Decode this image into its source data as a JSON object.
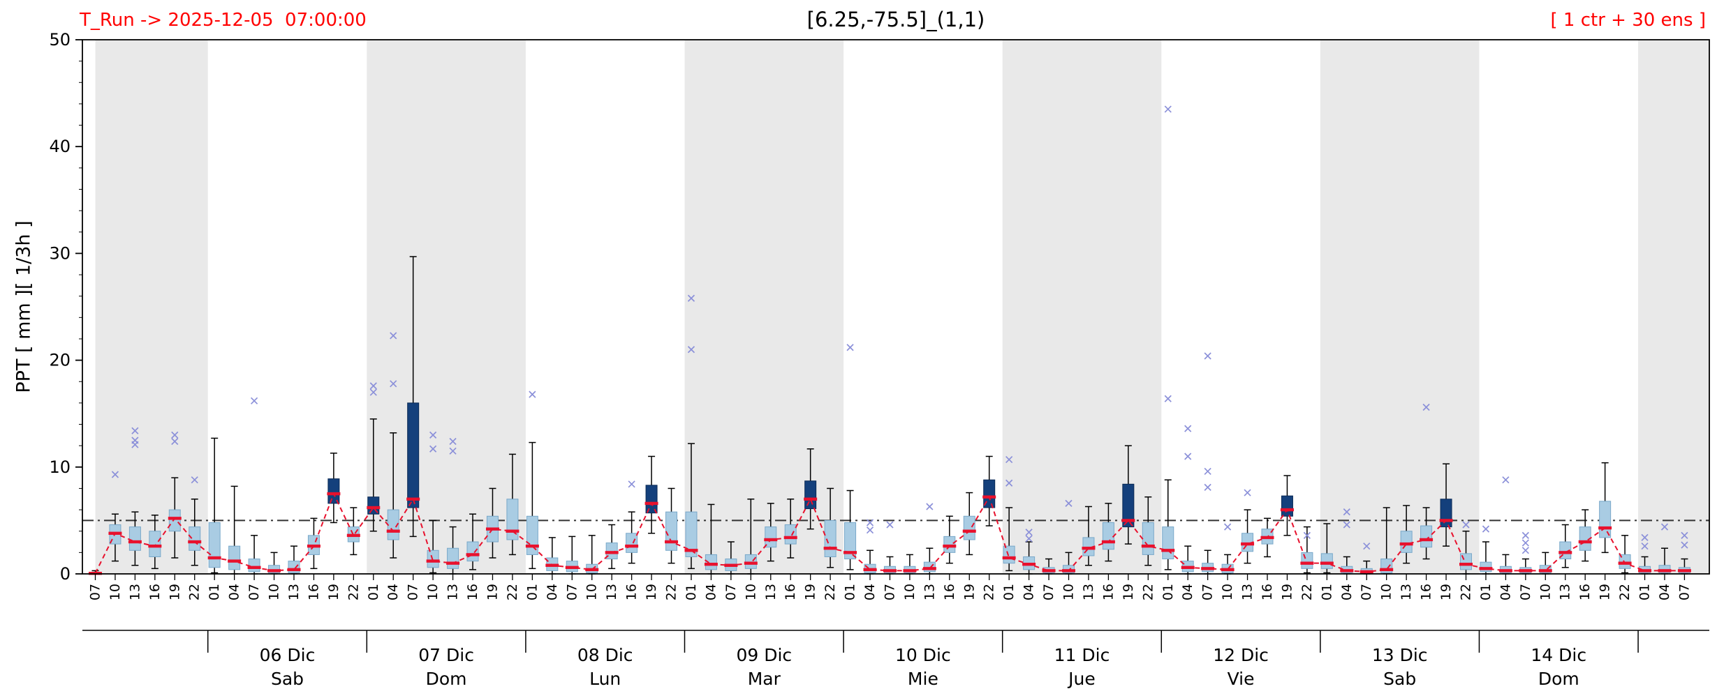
{
  "header": {
    "t_run": "T_Run -> 2025-12-05  07:00:00",
    "title": "[6.25,-75.5]_(1,1)",
    "ensemble": "[ 1 ctr + 30 ens ]"
  },
  "chart_data": {
    "type": "boxplot-timeseries",
    "title": "[6.25,-75.5]_(1,1)",
    "left_annotation": "T_Run -> 2025-12-05  07:00:00",
    "right_annotation": "[ 1 ctr + 30 ens ]",
    "ylabel": "PPT  [ mm ][ 1/3h ]",
    "ylim": [
      0,
      50
    ],
    "yticks": [
      0,
      10,
      20,
      30,
      40,
      50
    ],
    "threshold": 5,
    "start": "2025-12-05 07:00",
    "step_hours": 3,
    "colors": {
      "red": "#e8112d",
      "title_red": "#ff0000",
      "light_box": "#a9cce3",
      "dark_box": "#14407c",
      "flier": "#8b90d9",
      "band": "#e9e9e9"
    },
    "days": [
      {
        "label": "",
        "sub": "",
        "start": 0,
        "end": 5.667,
        "shaded": true
      },
      {
        "label": "06 Dic",
        "sub": "Sab",
        "start": 5.667,
        "end": 13.667,
        "shaded": false
      },
      {
        "label": "07 Dic",
        "sub": "Dom",
        "start": 13.667,
        "end": 21.667,
        "shaded": true
      },
      {
        "label": "08 Dic",
        "sub": "Lun",
        "start": 21.667,
        "end": 29.667,
        "shaded": false
      },
      {
        "label": "09 Dic",
        "sub": "Mar",
        "start": 29.667,
        "end": 37.667,
        "shaded": true
      },
      {
        "label": "10 Dic",
        "sub": "Mie",
        "start": 37.667,
        "end": 45.667,
        "shaded": false
      },
      {
        "label": "11 Dic",
        "sub": "Jue",
        "start": 45.667,
        "end": 53.667,
        "shaded": true
      },
      {
        "label": "12 Dic",
        "sub": "Vie",
        "start": 53.667,
        "end": 61.667,
        "shaded": false
      },
      {
        "label": "13 Dic",
        "sub": "Sab",
        "start": 61.667,
        "end": 69.667,
        "shaded": true
      },
      {
        "label": "14 Dic",
        "sub": "Dom",
        "start": 69.667,
        "end": 77.667,
        "shaded": false
      },
      {
        "label": "",
        "sub": "",
        "start": 77.667,
        "end": 81.25,
        "shaded": true
      }
    ],
    "slot_fields": [
      "hour",
      "median",
      "q1",
      "q3",
      "whisker_lo",
      "whisker_hi",
      "dark_box",
      "outliers"
    ],
    "slots": [
      [
        "07",
        0.05,
        0,
        0.15,
        0,
        0.3,
        0,
        []
      ],
      [
        "10",
        3.8,
        2.8,
        4.6,
        1.2,
        5.6,
        0,
        [
          9.3
        ]
      ],
      [
        "13",
        3.0,
        2.2,
        4.4,
        0.8,
        5.8,
        0,
        [
          13.4,
          12.5,
          12.1
        ]
      ],
      [
        "16",
        2.6,
        1.6,
        4.0,
        0.5,
        5.5,
        0,
        []
      ],
      [
        "19",
        5.2,
        4.0,
        6.0,
        1.5,
        9.0,
        0,
        [
          13.0,
          12.4
        ]
      ],
      [
        "22",
        3.0,
        2.2,
        4.4,
        0.8,
        7.0,
        0,
        [
          8.8
        ]
      ],
      [
        "01",
        1.5,
        0.6,
        4.8,
        0.1,
        12.7,
        0,
        []
      ],
      [
        "04",
        1.2,
        0.4,
        2.6,
        0,
        8.2,
        0,
        []
      ],
      [
        "07",
        0.6,
        0.2,
        1.4,
        0,
        3.6,
        0,
        [
          16.2
        ]
      ],
      [
        "10",
        0.3,
        0.1,
        0.8,
        0,
        2.0,
        0,
        []
      ],
      [
        "13",
        0.4,
        0.1,
        1.2,
        0,
        2.6,
        0,
        []
      ],
      [
        "16",
        2.6,
        1.8,
        3.6,
        0.5,
        5.2,
        0,
        []
      ],
      [
        "19",
        7.5,
        6.6,
        8.9,
        4.8,
        11.3,
        1,
        []
      ],
      [
        "22",
        3.6,
        3.0,
        4.4,
        1.8,
        6.2,
        0,
        []
      ],
      [
        "01",
        6.2,
        5.6,
        7.2,
        4.0,
        14.5,
        1,
        [
          17.6,
          17.0
        ]
      ],
      [
        "04",
        4.0,
        3.2,
        6.0,
        1.5,
        13.2,
        0,
        [
          22.3,
          17.8
        ]
      ],
      [
        "07",
        7.0,
        6.2,
        16.0,
        3.5,
        29.7,
        1,
        []
      ],
      [
        "10",
        1.2,
        0.6,
        2.2,
        0.1,
        5.0,
        0,
        [
          13.0,
          11.7
        ]
      ],
      [
        "13",
        1.0,
        0.5,
        2.4,
        0,
        4.4,
        0,
        [
          12.4,
          11.5
        ]
      ],
      [
        "16",
        1.8,
        1.2,
        3.0,
        0.4,
        5.6,
        0,
        []
      ],
      [
        "19",
        4.2,
        3.0,
        5.4,
        1.5,
        8.0,
        0,
        []
      ],
      [
        "22",
        4.0,
        3.2,
        7.0,
        1.8,
        11.2,
        0,
        []
      ],
      [
        "01",
        2.6,
        1.8,
        5.4,
        0.5,
        12.3,
        0,
        [
          16.8
        ]
      ],
      [
        "04",
        0.8,
        0.3,
        1.5,
        0,
        3.4,
        0,
        []
      ],
      [
        "07",
        0.6,
        0.2,
        1.2,
        0,
        3.5,
        0,
        []
      ],
      [
        "10",
        0.4,
        0.1,
        0.9,
        0,
        3.6,
        0,
        []
      ],
      [
        "13",
        2.0,
        1.4,
        2.9,
        0.5,
        4.6,
        0,
        []
      ],
      [
        "16",
        2.6,
        2.0,
        3.8,
        1.0,
        5.8,
        0,
        [
          8.4
        ]
      ],
      [
        "19",
        6.6,
        5.7,
        8.3,
        3.8,
        11.0,
        1,
        []
      ],
      [
        "22",
        3.0,
        2.2,
        5.8,
        1.0,
        8.0,
        0,
        []
      ],
      [
        "01",
        2.2,
        1.6,
        5.8,
        0.5,
        12.2,
        0,
        [
          25.8,
          21.0
        ]
      ],
      [
        "04",
        0.9,
        0.4,
        1.8,
        0,
        6.5,
        0,
        []
      ],
      [
        "07",
        0.8,
        0.3,
        1.4,
        0,
        3.0,
        0,
        []
      ],
      [
        "10",
        1.0,
        0.5,
        1.8,
        0,
        7.0,
        0,
        []
      ],
      [
        "13",
        3.2,
        2.5,
        4.4,
        1.2,
        6.6,
        0,
        []
      ],
      [
        "16",
        3.4,
        2.8,
        4.6,
        1.5,
        7.0,
        0,
        []
      ],
      [
        "19",
        7.0,
        6.1,
        8.7,
        4.2,
        11.7,
        1,
        []
      ],
      [
        "22",
        2.4,
        1.6,
        5.0,
        0.6,
        8.0,
        0,
        []
      ],
      [
        "01",
        2.0,
        1.4,
        4.8,
        0.4,
        7.8,
        0,
        [
          21.2
        ]
      ],
      [
        "04",
        0.4,
        0.1,
        0.9,
        0,
        2.2,
        0,
        [
          4.8,
          4.1
        ]
      ],
      [
        "07",
        0.3,
        0.1,
        0.7,
        0,
        1.6,
        0,
        [
          4.6
        ]
      ],
      [
        "10",
        0.3,
        0.1,
        0.7,
        0,
        1.8,
        0,
        []
      ],
      [
        "13",
        0.5,
        0.2,
        1.1,
        0,
        2.4,
        0,
        [
          6.3
        ]
      ],
      [
        "16",
        2.6,
        2.0,
        3.5,
        1.0,
        5.4,
        0,
        []
      ],
      [
        "19",
        4.0,
        3.2,
        5.4,
        1.8,
        7.6,
        0,
        []
      ],
      [
        "22",
        7.2,
        6.2,
        8.8,
        4.5,
        11.0,
        1,
        []
      ],
      [
        "01",
        1.5,
        1.0,
        2.6,
        0.3,
        6.2,
        0,
        [
          10.7,
          8.5
        ]
      ],
      [
        "04",
        0.9,
        0.4,
        1.6,
        0,
        3.0,
        0,
        [
          3.9,
          3.3
        ]
      ],
      [
        "07",
        0.3,
        0.1,
        0.6,
        0,
        1.4,
        0,
        []
      ],
      [
        "10",
        0.3,
        0.1,
        0.8,
        0,
        2.0,
        0,
        [
          6.6
        ]
      ],
      [
        "13",
        2.4,
        1.7,
        3.4,
        0.8,
        6.3,
        0,
        []
      ],
      [
        "16",
        3.0,
        2.3,
        4.8,
        1.2,
        6.6,
        0,
        []
      ],
      [
        "19",
        5.0,
        4.4,
        8.4,
        2.8,
        12.0,
        1,
        []
      ],
      [
        "22",
        2.6,
        1.8,
        4.8,
        0.8,
        7.2,
        0,
        []
      ],
      [
        "01",
        2.2,
        1.4,
        4.4,
        0.4,
        8.8,
        0,
        [
          43.5,
          16.4
        ]
      ],
      [
        "04",
        0.6,
        0.2,
        1.2,
        0,
        2.6,
        0,
        [
          13.6,
          11.0
        ]
      ],
      [
        "07",
        0.5,
        0.2,
        1.0,
        0,
        2.2,
        0,
        [
          20.4,
          9.6,
          8.1
        ]
      ],
      [
        "10",
        0.4,
        0.1,
        0.9,
        0,
        1.8,
        0,
        [
          4.4
        ]
      ],
      [
        "13",
        2.8,
        2.1,
        3.8,
        1.0,
        6.0,
        0,
        [
          7.6
        ]
      ],
      [
        "16",
        3.4,
        2.8,
        4.2,
        1.6,
        5.2,
        0,
        []
      ],
      [
        "19",
        6.0,
        5.4,
        7.3,
        3.6,
        9.2,
        1,
        []
      ],
      [
        "22",
        1.0,
        0.5,
        2.0,
        0.1,
        4.4,
        0,
        [
          3.6
        ]
      ],
      [
        "01",
        1.0,
        0.5,
        1.9,
        0.1,
        4.7,
        0,
        []
      ],
      [
        "04",
        0.3,
        0.1,
        0.7,
        0,
        1.6,
        0,
        [
          5.8,
          4.6
        ]
      ],
      [
        "07",
        0.2,
        0.05,
        0.5,
        0,
        1.2,
        0,
        [
          2.6
        ]
      ],
      [
        "10",
        0.4,
        0.1,
        1.4,
        0,
        6.2,
        0,
        []
      ],
      [
        "13",
        2.8,
        2.0,
        4.0,
        1.0,
        6.4,
        0,
        []
      ],
      [
        "16",
        3.2,
        2.5,
        4.5,
        1.4,
        6.2,
        0,
        [
          15.6
        ]
      ],
      [
        "19",
        5.0,
        4.4,
        7.0,
        2.6,
        10.3,
        1,
        []
      ],
      [
        "22",
        0.9,
        0.4,
        1.9,
        0,
        4.0,
        0,
        [
          4.6
        ]
      ],
      [
        "01",
        0.5,
        0.2,
        1.1,
        0,
        3.0,
        0,
        [
          4.2
        ]
      ],
      [
        "04",
        0.3,
        0.1,
        0.7,
        0,
        1.8,
        0,
        [
          8.8
        ]
      ],
      [
        "07",
        0.3,
        0.1,
        0.6,
        0,
        1.4,
        0,
        [
          3.6,
          2.9,
          2.2
        ]
      ],
      [
        "10",
        0.3,
        0.1,
        0.8,
        0,
        2.0,
        0,
        []
      ],
      [
        "13",
        2.0,
        1.4,
        3.0,
        0.6,
        4.6,
        0,
        []
      ],
      [
        "16",
        3.0,
        2.2,
        4.4,
        1.2,
        6.0,
        0,
        []
      ],
      [
        "19",
        4.3,
        3.4,
        6.8,
        2.0,
        10.4,
        0,
        []
      ],
      [
        "22",
        1.0,
        0.5,
        1.8,
        0.1,
        3.6,
        0,
        []
      ],
      [
        "01",
        0.3,
        0.1,
        0.7,
        0,
        1.6,
        0,
        [
          3.4,
          2.6
        ]
      ],
      [
        "04",
        0.3,
        0.1,
        0.8,
        0,
        2.4,
        0,
        [
          4.4
        ]
      ],
      [
        "07",
        0.3,
        0.1,
        0.6,
        0,
        1.4,
        0,
        [
          3.6,
          2.7
        ]
      ]
    ]
  }
}
